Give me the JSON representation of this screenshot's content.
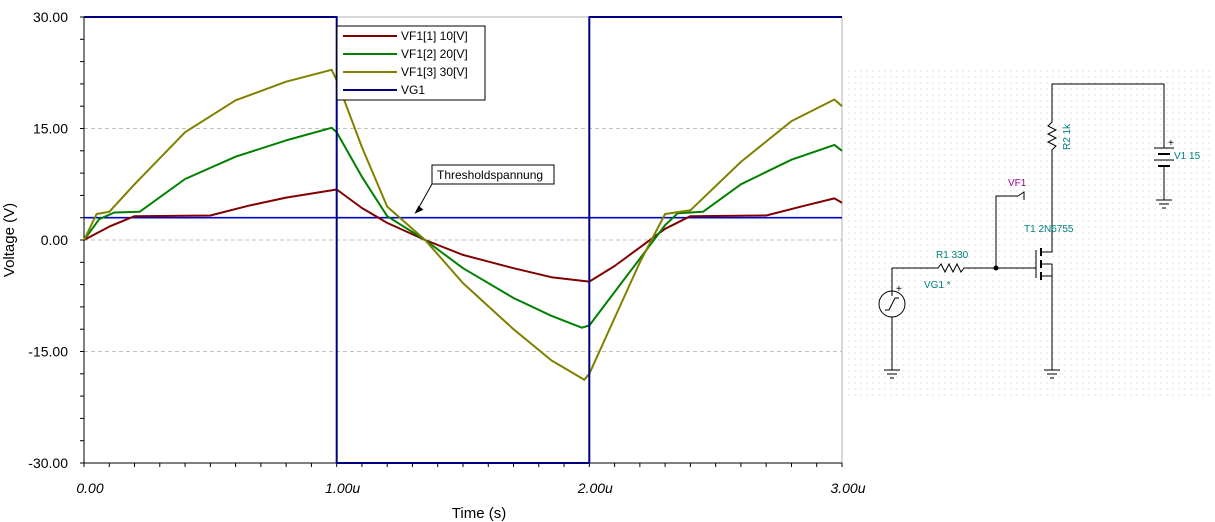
{
  "chart_data": {
    "type": "line",
    "xlabel": "Time (s)",
    "ylabel": "Voltage (V)",
    "xlim": [
      0,
      3e-06
    ],
    "ylim": [
      -30,
      30
    ],
    "grid": true,
    "legend_position": "top-center",
    "x_tick_labels": [
      "0.00",
      "1.00u",
      "2.00u",
      "3.00u"
    ],
    "y_tick_labels": [
      "30.00",
      "15.00",
      "0.00",
      "-15.00",
      "-30.00"
    ],
    "y_ticks": [
      30,
      15,
      0,
      -15,
      -30
    ],
    "x_ticks": [
      0,
      1e-06,
      2e-06,
      3e-06
    ],
    "annotation": {
      "text": "Thresholdspannung",
      "x": 1.3e-06,
      "y": 3
    },
    "threshold": {
      "y": 3,
      "color": "#0000cc"
    },
    "series": [
      {
        "name": "VF1[1]  10[V]",
        "color": "#800000",
        "points": [
          [
            0,
            0
          ],
          [
            1e-07,
            1.8
          ],
          [
            2e-07,
            3.2
          ],
          [
            5e-07,
            3.3
          ],
          [
            6.5e-07,
            4.6
          ],
          [
            8e-07,
            5.7
          ],
          [
            1e-06,
            6.8
          ],
          [
            1.1e-06,
            4.3
          ],
          [
            1.2e-06,
            2.3
          ],
          [
            1.35e-06,
            0
          ],
          [
            1.5e-06,
            -2
          ],
          [
            1.7e-06,
            -3.8
          ],
          [
            1.85e-06,
            -5
          ],
          [
            2e-06,
            -5.6
          ],
          [
            2.1e-06,
            -3.5
          ],
          [
            2.2e-06,
            -1
          ],
          [
            2.3e-06,
            1.5
          ],
          [
            2.4e-06,
            3.2
          ],
          [
            2.7e-06,
            3.3
          ],
          [
            2.85e-06,
            4.6
          ],
          [
            2.97e-06,
            5.6
          ],
          [
            3e-06,
            5
          ]
        ]
      },
      {
        "name": "VF1[2]  20[V]",
        "color": "#008000",
        "points": [
          [
            0,
            0
          ],
          [
            6e-08,
            2.8
          ],
          [
            1.2e-07,
            3.7
          ],
          [
            2.2e-07,
            3.8
          ],
          [
            4e-07,
            8.2
          ],
          [
            6e-07,
            11.2
          ],
          [
            8e-07,
            13.4
          ],
          [
            9.8e-07,
            15.1
          ],
          [
            1e-06,
            14.5
          ],
          [
            1.1e-06,
            8.5
          ],
          [
            1.2e-06,
            3.2
          ],
          [
            1.35e-06,
            0
          ],
          [
            1.5e-06,
            -3.8
          ],
          [
            1.7e-06,
            -7.8
          ],
          [
            1.85e-06,
            -10.2
          ],
          [
            1.97e-06,
            -11.8
          ],
          [
            2e-06,
            -11.5
          ],
          [
            2.1e-06,
            -7
          ],
          [
            2.2e-06,
            -2.5
          ],
          [
            2.3e-06,
            2
          ],
          [
            2.35e-06,
            3.6
          ],
          [
            2.45e-06,
            3.8
          ],
          [
            2.6e-06,
            7.5
          ],
          [
            2.8e-06,
            10.8
          ],
          [
            2.97e-06,
            12.8
          ],
          [
            3e-06,
            12
          ]
        ]
      },
      {
        "name": "VF1[3]  30[V]",
        "color": "#808000",
        "points": [
          [
            0,
            0
          ],
          [
            5e-08,
            3.5
          ],
          [
            1e-07,
            3.8
          ],
          [
            2e-07,
            7.5
          ],
          [
            4e-07,
            14.5
          ],
          [
            6e-07,
            18.8
          ],
          [
            8e-07,
            21.3
          ],
          [
            9.8e-07,
            22.9
          ],
          [
            1e-06,
            21.5
          ],
          [
            1.1e-06,
            12.5
          ],
          [
            1.2e-06,
            4.5
          ],
          [
            1.35e-06,
            0
          ],
          [
            1.5e-06,
            -5.8
          ],
          [
            1.7e-06,
            -12
          ],
          [
            1.85e-06,
            -16.2
          ],
          [
            1.98e-06,
            -18.8
          ],
          [
            2e-06,
            -18
          ],
          [
            2.1e-06,
            -10.5
          ],
          [
            2.2e-06,
            -3
          ],
          [
            2.3e-06,
            3.5
          ],
          [
            2.4e-06,
            4
          ],
          [
            2.6e-06,
            10.5
          ],
          [
            2.8e-06,
            16
          ],
          [
            2.97e-06,
            18.9
          ],
          [
            3e-06,
            18
          ]
        ]
      },
      {
        "name": "VG1",
        "color": "#000080",
        "points": [
          [
            0,
            30
          ],
          [
            1e-06,
            30
          ],
          [
            1e-06,
            -30
          ],
          [
            2e-06,
            -30
          ],
          [
            2e-06,
            30
          ],
          [
            3e-06,
            30
          ]
        ]
      }
    ]
  },
  "schematic": {
    "vf1_label": "VF1",
    "r1_label": "R1 330",
    "vg1_label": "VG1 *",
    "t1_label": "T1 2N6755",
    "r2_label": "R2 1k",
    "v1_label": "V1 15",
    "plus1": "+",
    "plus2": "+"
  }
}
